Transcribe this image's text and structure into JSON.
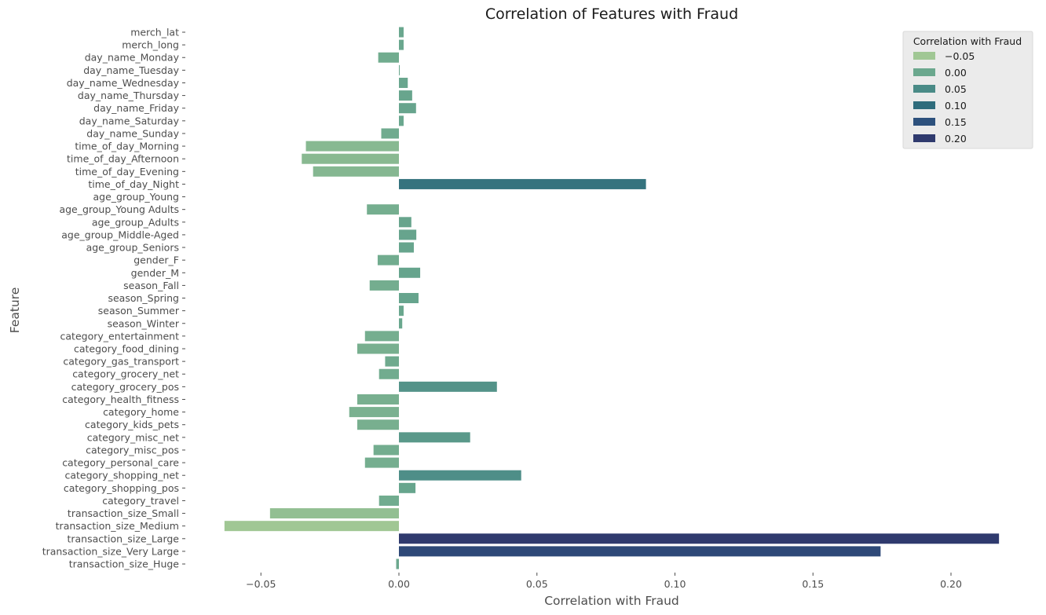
{
  "chart_data": {
    "type": "bar",
    "orientation": "horizontal",
    "title": "Correlation of Features with Fraud",
    "xlabel": "Correlation with Fraud",
    "ylabel": "Feature",
    "xlim": [
      -0.065,
      0.22
    ],
    "xticks": [
      -0.05,
      0.0,
      0.05,
      0.1,
      0.15,
      0.2
    ],
    "xtick_labels": [
      "−0.05",
      "0.00",
      "0.05",
      "0.10",
      "0.15",
      "0.20"
    ],
    "grid": false,
    "legend": {
      "title": "Correlation with Fraud",
      "placement": "top-right",
      "entries": [
        {
          "label": "−0.05",
          "color": "#a0c794"
        },
        {
          "label": "0.00",
          "color": "#6ba88e"
        },
        {
          "label": "0.05",
          "color": "#4a8b87"
        },
        {
          "label": "0.10",
          "color": "#2f6c7c"
        },
        {
          "label": "0.15",
          "color": "#2d517d"
        },
        {
          "label": "0.20",
          "color": "#2f3a6e"
        }
      ]
    },
    "color_scale": {
      "stops": [
        {
          "value": -0.063,
          "color": "#a0c794"
        },
        {
          "value": 0.0,
          "color": "#6ba88e"
        },
        {
          "value": 0.05,
          "color": "#4a8b87"
        },
        {
          "value": 0.1,
          "color": "#2f6c7c"
        },
        {
          "value": 0.15,
          "color": "#2d517d"
        },
        {
          "value": 0.217,
          "color": "#2f3a6e"
        }
      ]
    },
    "categories": [
      "merch_lat",
      "merch_long",
      "day_name_Monday",
      "day_name_Tuesday",
      "day_name_Wednesday",
      "day_name_Thursday",
      "day_name_Friday",
      "day_name_Saturday",
      "day_name_Sunday",
      "time_of_day_Morning",
      "time_of_day_Afternoon",
      "time_of_day_Evening",
      "time_of_day_Night",
      "age_group_Young",
      "age_group_Young Adults",
      "age_group_Adults",
      "age_group_Middle-Aged",
      "age_group_Seniors",
      "gender_F",
      "gender_M",
      "season_Fall",
      "season_Spring",
      "season_Summer",
      "season_Winter",
      "category_entertainment",
      "category_food_dining",
      "category_gas_transport",
      "category_grocery_net",
      "category_grocery_pos",
      "category_health_fitness",
      "category_home",
      "category_kids_pets",
      "category_misc_net",
      "category_misc_pos",
      "category_personal_care",
      "category_shopping_net",
      "category_shopping_pos",
      "category_travel",
      "transaction_size_Small",
      "transaction_size_Medium",
      "transaction_size_Large",
      "transaction_size_Very Large",
      "transaction_size_Huge"
    ],
    "values": [
      0.0017,
      0.0017,
      -0.0075,
      0.0003,
      0.0032,
      0.0048,
      0.0062,
      0.0017,
      -0.0064,
      -0.0337,
      -0.0352,
      -0.0311,
      0.0895,
      0.0,
      -0.0116,
      0.0045,
      0.0063,
      0.0054,
      -0.0077,
      0.0077,
      -0.0106,
      0.0071,
      0.0017,
      0.0012,
      -0.0123,
      -0.0151,
      -0.005,
      -0.0072,
      0.0355,
      -0.0151,
      -0.018,
      -0.0151,
      0.0258,
      -0.0092,
      -0.0123,
      0.0443,
      0.006,
      -0.0072,
      -0.0467,
      -0.0632,
      0.2174,
      0.1745,
      -0.001
    ]
  }
}
